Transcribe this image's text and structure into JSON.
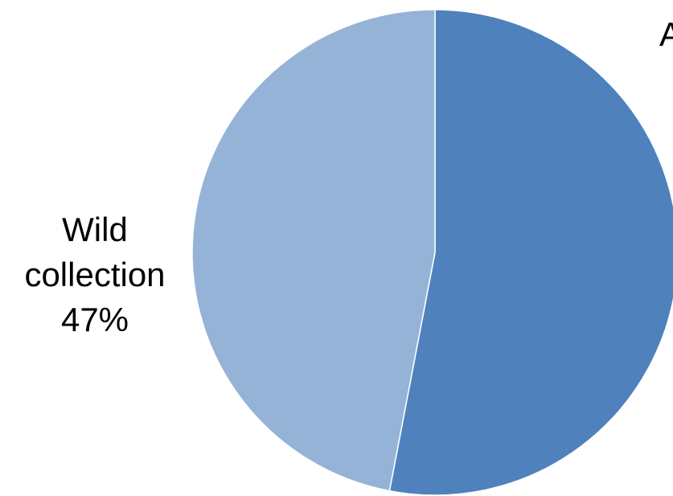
{
  "chart_data": {
    "type": "pie",
    "slices": [
      {
        "label_lines": [
          "A"
        ],
        "percent_label": "",
        "value": 53,
        "color": "#4f81bd"
      },
      {
        "label_lines": [
          "Wild",
          "collection"
        ],
        "percent_label": "47%",
        "value": 47,
        "color": "#95b3d7"
      }
    ],
    "start_angle_deg": 0,
    "direction": "clockwise",
    "legend": "none",
    "slice_border_color": "#ffffff"
  }
}
